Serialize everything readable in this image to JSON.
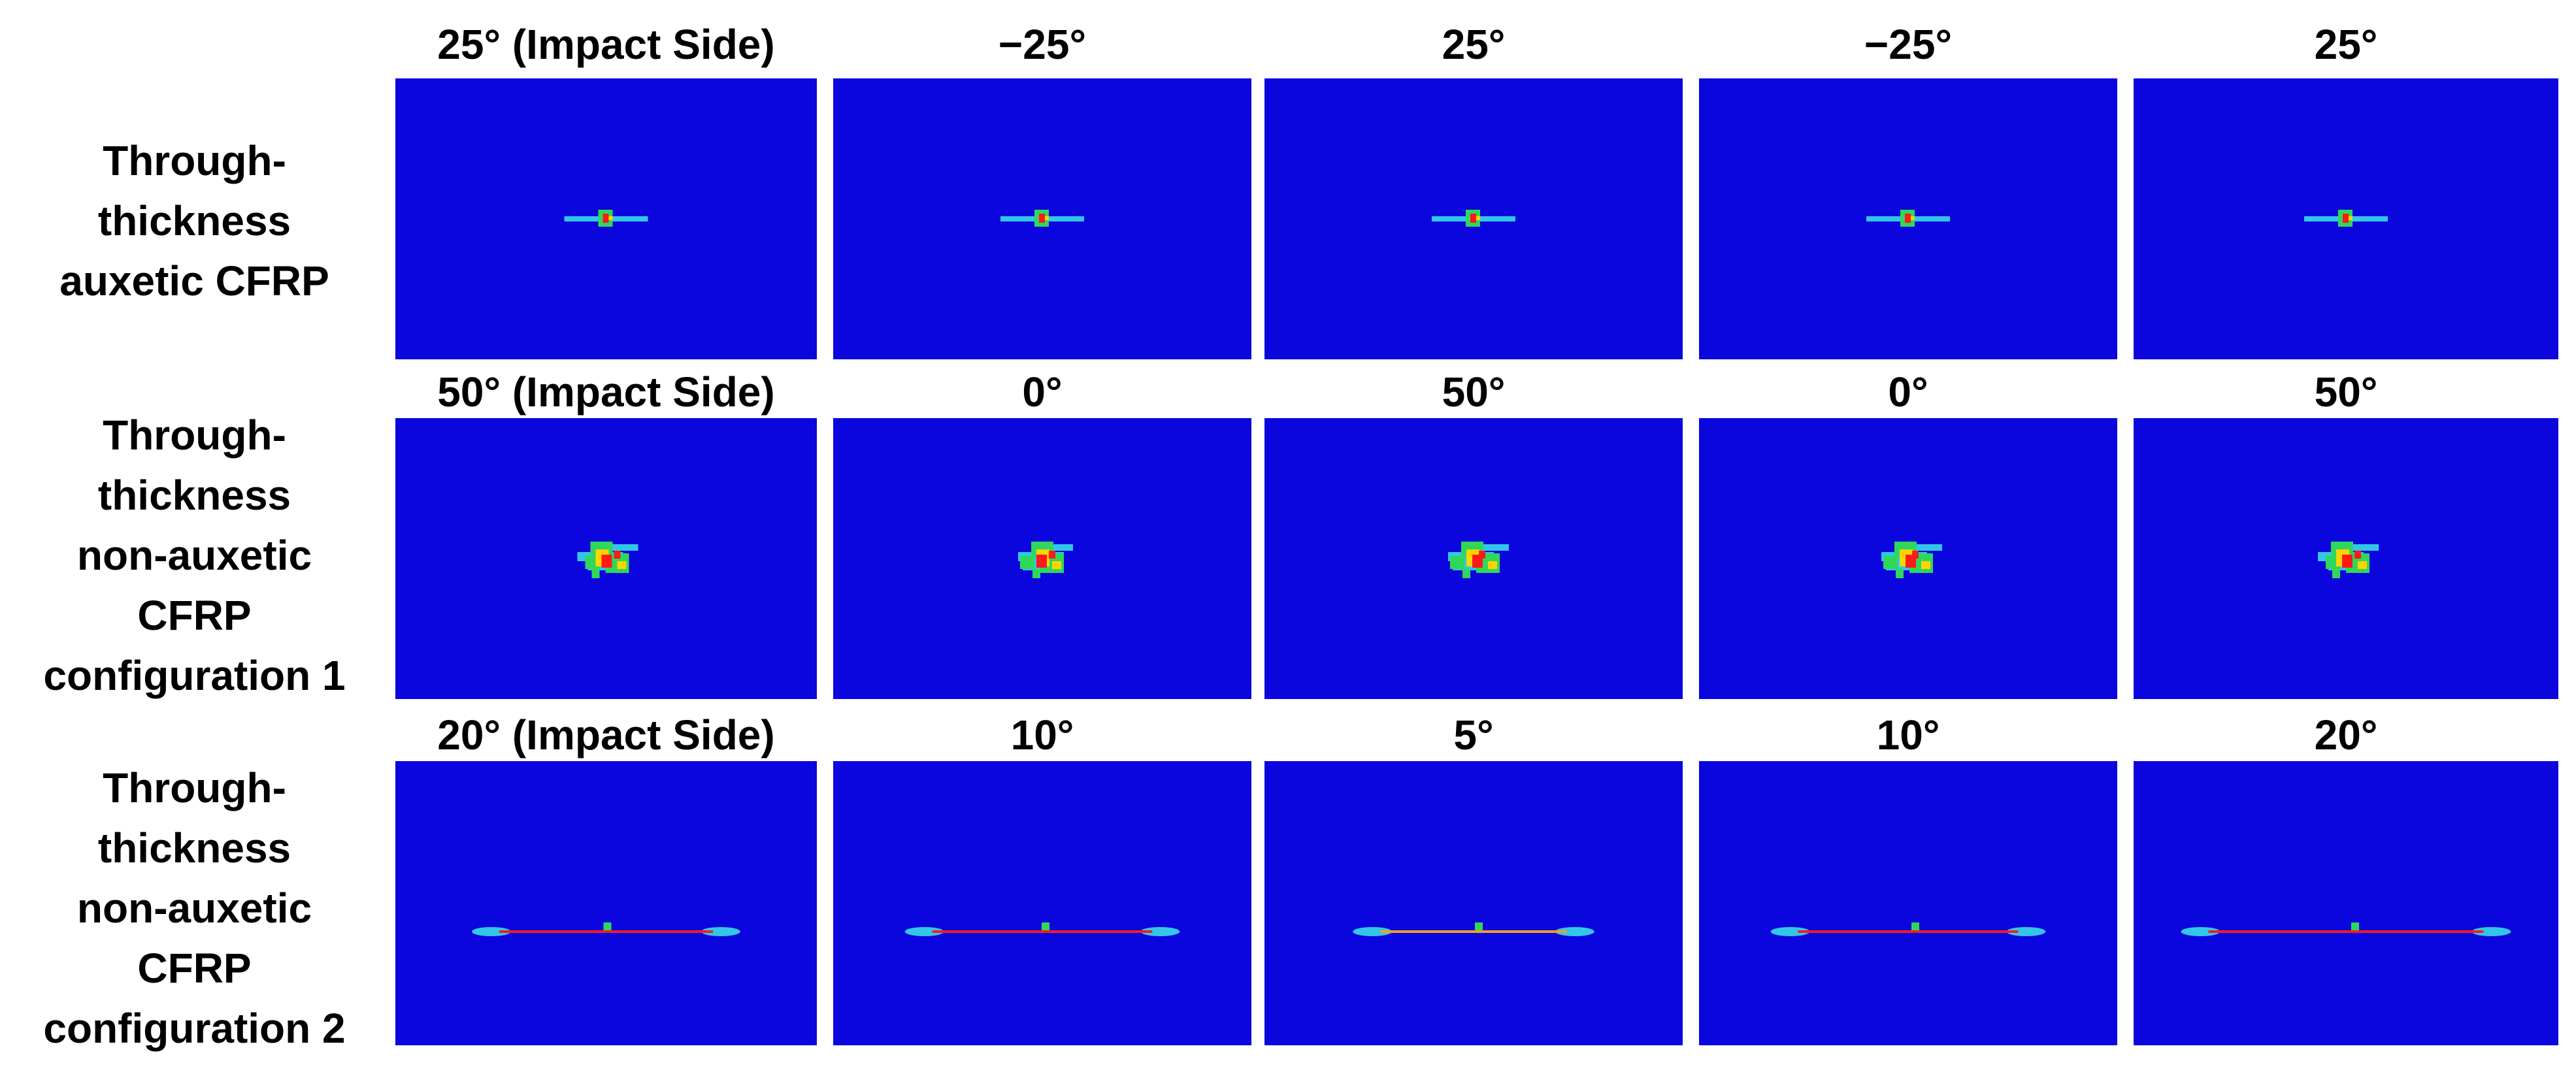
{
  "rows": [
    {
      "label": [
        "Through-",
        "thickness",
        "auxetic CFRP"
      ],
      "titles": [
        "25° (Impact Side)",
        "−25°",
        "25°",
        "−25°",
        "25°"
      ],
      "damage": "small"
    },
    {
      "label": [
        "Through-",
        "thickness",
        "non-auxetic",
        "CFRP",
        "configuration 1"
      ],
      "titles": [
        "50° (Impact Side)",
        "0°",
        "50°",
        "0°",
        "50°"
      ],
      "damage": "cluster"
    },
    {
      "label": [
        "Through-",
        "thickness",
        "non-auxetic",
        "CFRP",
        "configuration 2"
      ],
      "titles": [
        "20° (Impact Side)",
        "10°",
        "5°",
        "10°",
        "20°"
      ],
      "damage": "long-crack"
    }
  ],
  "colors": {
    "background": "#0a06dd",
    "damage_low": "#33c6e8",
    "damage_mid": "#2fd85a",
    "damage_high": "#ffd400",
    "damage_max": "#ff1a1a"
  }
}
